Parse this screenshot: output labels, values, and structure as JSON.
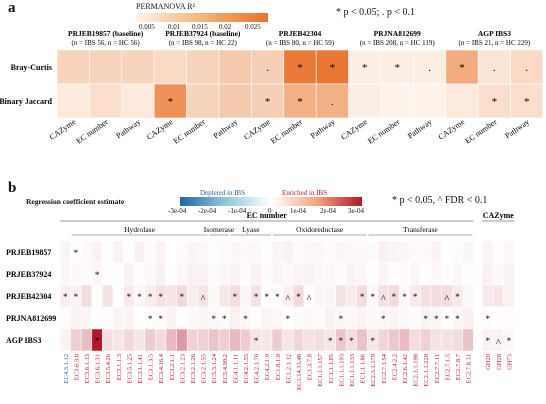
{
  "panel_a": {
    "label": "a",
    "legend_title": "PERMANOVA R²",
    "legend_ticks": [
      "0.005",
      "0.01",
      "0.015",
      "0.02",
      "0.025"
    ],
    "legend_values": [
      0.005,
      0.01,
      0.015,
      0.02,
      0.025
    ],
    "sig_note": "* p < 0.05; . p < 0.1",
    "datasets": [
      {
        "name": "PRJEB19857 (baseline)",
        "sub": "(n = IBS 56, n = HC 56)"
      },
      {
        "name": "PRJEB37924 (baseline)",
        "sub": "(n = IBS 98, n = HC 22)"
      },
      {
        "name": "PRJEB42304",
        "sub": "(n = IBS 80, n = HC 59)"
      },
      {
        "name": "PRJNA812699",
        "sub": "(n = IBS 208, n = HC 119)"
      },
      {
        "name": "AGP IBS3",
        "sub": "(n = IBS 21, n = HC 229)"
      }
    ],
    "col_labels": [
      "CAZyme",
      "EC number",
      "Pathway"
    ],
    "row_labels": [
      "Bray-Curtis",
      "Binary Jaccard"
    ],
    "colors": {
      "low": "#fdf3ea",
      "high": "#e8722a"
    }
  },
  "panel_b": {
    "label": "b",
    "legend_title": "Regression coefficient estimate",
    "depleted": "Depleted in IBS",
    "enriched": "Enriched in IBS",
    "legend_ticks": [
      "-3e-04",
      "-2e-04",
      "-1e-04",
      "0",
      "1e-04",
      "2e-04",
      "3e-04"
    ],
    "sig_note": "* p < 0.05, ^ FDR < 0.1",
    "ec_header": "EC number",
    "caz_header": "CAZyme",
    "groups": [
      "Hydrolase",
      "Isomerase",
      "Lyase",
      "Oxidoreductase",
      "Transferase"
    ],
    "row_labels": [
      "PRJEB19857",
      "PRJEB37924",
      "PRJEB42304",
      "PRJNA812699",
      "AGP IBS3"
    ],
    "colors": {
      "neg": "#2166ac",
      "pos": "#b2182b"
    }
  },
  "chart_data": [
    {
      "type": "heatmap",
      "title": "PERMANOVA R²",
      "x": [
        "PRJEB19857 CAZyme",
        "PRJEB19857 EC number",
        "PRJEB19857 Pathway",
        "PRJEB37924 CAZyme",
        "PRJEB37924 EC number",
        "PRJEB37924 Pathway",
        "PRJEB42304 CAZyme",
        "PRJEB42304 EC number",
        "PRJEB42304 Pathway",
        "PRJNA812699 CAZyme",
        "PRJNA812699 EC number",
        "PRJNA812699 Pathway",
        "AGP IBS3 CAZyme",
        "AGP IBS3 EC number",
        "AGP IBS3 Pathway"
      ],
      "y": [
        "Bray-Curtis",
        "Binary Jaccard"
      ],
      "values": [
        [
          0.009,
          0.009,
          0.009,
          0.008,
          0.009,
          0.011,
          0.01,
          0.026,
          0.027,
          0.004,
          0.004,
          0.004,
          0.017,
          0.006,
          0.008
        ],
        [
          0.005,
          0.007,
          0.005,
          0.022,
          0.009,
          0.011,
          0.01,
          0.016,
          0.016,
          0.004,
          0.003,
          0.003,
          0.005,
          0.007,
          0.007
        ]
      ],
      "annotations": [
        [
          "",
          "",
          "",
          "",
          "",
          "",
          ".",
          "*",
          "*",
          "*",
          "*",
          ".",
          "*",
          ".",
          "."
        ],
        [
          "",
          "",
          "",
          "*",
          "",
          "",
          "*",
          "*",
          ".",
          "",
          "",
          "",
          "",
          "*",
          "*"
        ]
      ],
      "colorbar_range": [
        0.003,
        0.028
      ]
    },
    {
      "type": "heatmap",
      "title": "Regression coefficient estimate",
      "x": [
        "EC4.3.1.12",
        "EC3.6.3.8",
        "EC3.6.1.13",
        "EC3.6.1.31",
        "EC3.5.4.26",
        "EC3.1.1.3",
        "EC3.5.1.25",
        "EC3.1.1.41",
        "EC3.1.3.5",
        "EC3.4.16.4",
        "EC3.2.1.1",
        "EC3.2.1.23",
        "EC3.2.1.26",
        "EC3.2.1.55",
        "EC5.3.1.24",
        "EC5.4.99.2",
        "EC4.1.1.11",
        "EC4.2.1.55",
        "EC4.2.1.70",
        "EC4.2.1.9",
        "EC1.8.1.9",
        "EC1.2.1.12",
        "EC1.14.13.48",
        "EC1.3.7.8",
        "EC1.1.1.157",
        "EC1.1.1.85",
        "EC1.1.1.193",
        "EC1.1.1.133",
        "EC1.1.1.86",
        "EC2.3.1.179",
        "EC2.7.1.54",
        "EC2.4.2.2",
        "EC2.6.1.42",
        "EC2.1.1.198",
        "EC2.1.1.228",
        "EC2.7.7.11",
        "EC2.7.1.5",
        "EC2.7.8.7",
        "EC2.7.8.31",
        "GH20",
        "GH28",
        "GH73"
      ],
      "y": [
        "PRJEB19857",
        "PRJEB37924",
        "PRJEB42304",
        "PRJNA812699",
        "AGP IBS3"
      ],
      "color_range": [
        -0.0003,
        0.0003
      ]
    }
  ]
}
